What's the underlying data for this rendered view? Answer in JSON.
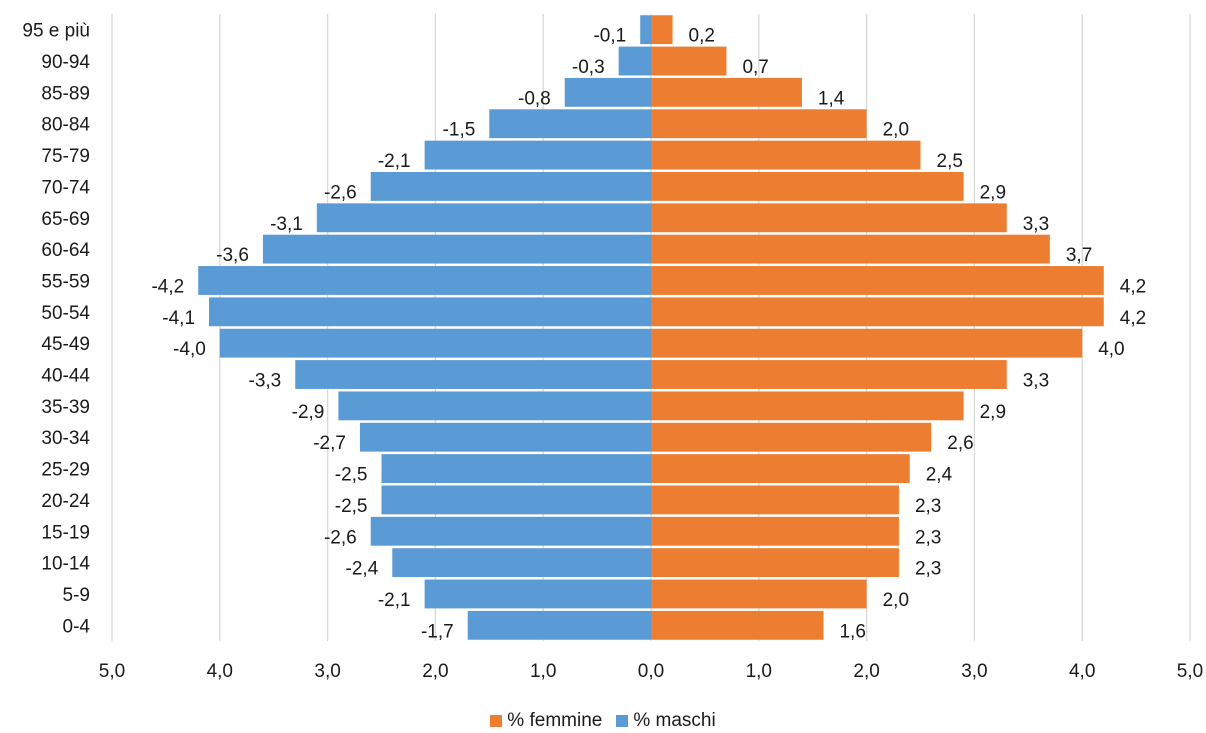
{
  "chart_data": {
    "type": "bar",
    "orientation": "horizontal",
    "categories": [
      "95 e più",
      "90-94",
      "85-89",
      "80-84",
      "75-79",
      "70-74",
      "65-69",
      "60-64",
      "55-59",
      "50-54",
      "45-49",
      "40-44",
      "35-39",
      "30-34",
      "25-29",
      "20-24",
      "15-19",
      "10-14",
      "5-9",
      "0-4"
    ],
    "series": [
      {
        "name": "% femmine",
        "color": "#ED7D31",
        "values": [
          0.2,
          0.7,
          1.4,
          2.0,
          2.5,
          2.9,
          3.3,
          3.7,
          4.2,
          4.2,
          4.0,
          3.3,
          2.9,
          2.6,
          2.4,
          2.3,
          2.3,
          2.3,
          2.0,
          1.6
        ],
        "labels": [
          "0,2",
          "0,7",
          "1,4",
          "2,0",
          "2,5",
          "2,9",
          "3,3",
          "3,7",
          "4,2",
          "4,2",
          "4,0",
          "3,3",
          "2,9",
          "2,6",
          "2,4",
          "2,3",
          "2,3",
          "2,3",
          "2,0",
          "1,6"
        ]
      },
      {
        "name": "% maschi",
        "color": "#5B9BD5",
        "values": [
          -0.1,
          -0.3,
          -0.8,
          -1.5,
          -2.1,
          -2.6,
          -3.1,
          -3.6,
          -4.2,
          -4.1,
          -4.0,
          -3.3,
          -2.9,
          -2.7,
          -2.5,
          -2.5,
          -2.6,
          -2.4,
          -2.1,
          -1.7
        ],
        "labels": [
          "-0,1",
          "-0,3",
          "-0,8",
          "-1,5",
          "-2,1",
          "-2,6",
          "-3,1",
          "-3,6",
          "-4,2",
          "-4,1",
          "-4,0",
          "-3,3",
          "-2,9",
          "-2,7",
          "-2,5",
          "-2,5",
          "-2,6",
          "-2,4",
          "-2,1",
          "-1,7"
        ]
      }
    ],
    "xlim": [
      -5.0,
      5.0
    ],
    "xticks": [
      -5,
      -4,
      -3,
      -2,
      -1,
      0,
      1,
      2,
      3,
      4,
      5
    ],
    "xtick_labels": [
      "5,0",
      "4,0",
      "3,0",
      "2,0",
      "1,0",
      "0,0",
      "1,0",
      "2,0",
      "3,0",
      "4,0",
      "5,0"
    ],
    "grid": true,
    "legend_position": "bottom",
    "title": "",
    "xlabel": "",
    "ylabel": ""
  },
  "legend": {
    "femmine": "% femmine",
    "maschi": "% maschi"
  }
}
